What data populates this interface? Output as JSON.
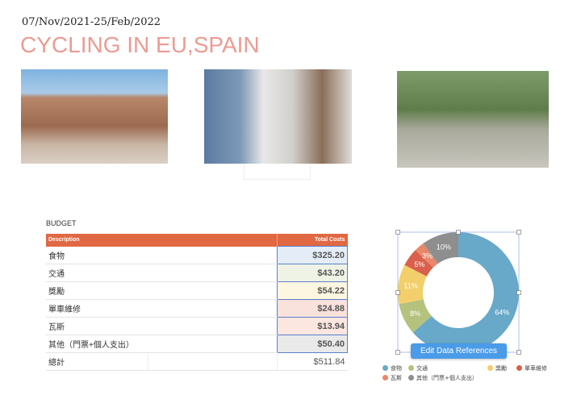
{
  "header": {
    "date": "07/Nov/2021-25/Feb/2022",
    "title": "CYCLING IN EU,SPAIN"
  },
  "budget": {
    "label": "BUDGET",
    "columns": [
      "Description",
      "Total Costs"
    ],
    "rows": [
      {
        "desc": "食物",
        "cost": "$325.20",
        "bg": "#e4edf7"
      },
      {
        "desc": "交通",
        "cost": "$43.20",
        "bg": "#eff3e6"
      },
      {
        "desc": "獎勵",
        "cost": "$54.22",
        "bg": "#fdf6e0"
      },
      {
        "desc": "單車維修",
        "cost": "$24.88",
        "bg": "#f9e1dc"
      },
      {
        "desc": "瓦斯",
        "cost": "$13.94",
        "bg": "#fbe6e0"
      },
      {
        "desc": "其他（門票+個人支出）",
        "cost": "$50.40",
        "bg": "#e9e9e9"
      }
    ],
    "total": {
      "label": "總計",
      "value": "$511.84"
    }
  },
  "chart_data": {
    "type": "pie",
    "donut": true,
    "categories": [
      "食物",
      "交通",
      "獎勵",
      "單車維修",
      "瓦斯",
      "其他（門票+個人支出）"
    ],
    "values": [
      325.2,
      43.2,
      54.22,
      24.88,
      13.94,
      50.4
    ],
    "labels": [
      "64%",
      "8%",
      "11%",
      "5%",
      "3%",
      "10%"
    ],
    "colors": [
      "#68a8c9",
      "#b5c27d",
      "#f2cf6a",
      "#d9604c",
      "#e8876a",
      "#8e8e8e"
    ],
    "legend_position": "bottom"
  },
  "edit_button": "Edit Data References"
}
